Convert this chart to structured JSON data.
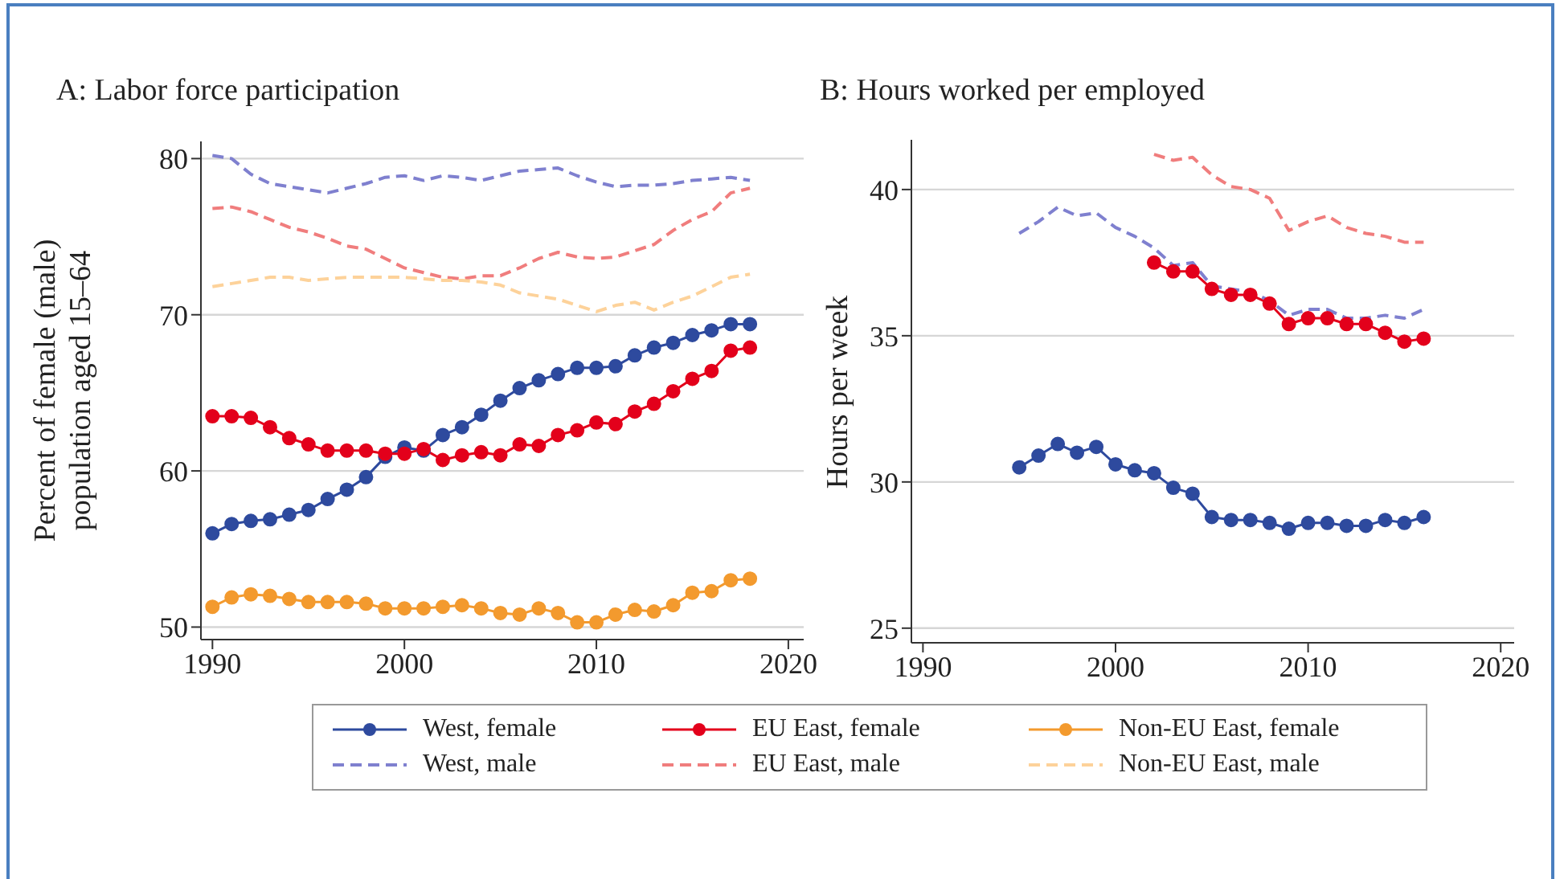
{
  "chart_data": [
    {
      "type": "line",
      "title": "A: Labor force participation",
      "ylabel": "Percent of female (male) population aged 15–64",
      "xlim": [
        1989.4,
        2020.8
      ],
      "xticks": [
        1990,
        2000,
        2010,
        2020
      ],
      "ylim": [
        49.2,
        81.1
      ],
      "yticks": [
        50,
        60,
        70,
        80
      ],
      "grid": "y",
      "legend": "bottom",
      "series": [
        {
          "name": "West, female",
          "color": "#2e4a9e",
          "marker": "circle",
          "line_style": "solid",
          "x": [
            1990,
            1991,
            1992,
            1993,
            1994,
            1995,
            1996,
            1997,
            1998,
            1999,
            2000,
            2001,
            2002,
            2003,
            2004,
            2005,
            2006,
            2007,
            2008,
            2009,
            2010,
            2011,
            2012,
            2013,
            2014,
            2015,
            2016,
            2017,
            2018
          ],
          "values": [
            56.0,
            56.6,
            56.8,
            56.9,
            57.2,
            57.5,
            58.2,
            58.8,
            59.6,
            60.9,
            61.5,
            61.3,
            62.3,
            62.8,
            63.6,
            64.5,
            65.3,
            65.8,
            66.2,
            66.6,
            66.6,
            66.7,
            67.4,
            67.9,
            68.2,
            68.7,
            69.0,
            69.4,
            69.4
          ]
        },
        {
          "name": "EU East, female",
          "color": "#e3001b",
          "marker": "circle",
          "line_style": "solid",
          "x": [
            1990,
            1991,
            1992,
            1993,
            1994,
            1995,
            1996,
            1997,
            1998,
            1999,
            2000,
            2001,
            2002,
            2003,
            2004,
            2005,
            2006,
            2007,
            2008,
            2009,
            2010,
            2011,
            2012,
            2013,
            2014,
            2015,
            2016,
            2017,
            2018
          ],
          "values": [
            63.5,
            63.5,
            63.4,
            62.8,
            62.1,
            61.7,
            61.3,
            61.3,
            61.3,
            61.1,
            61.1,
            61.4,
            60.7,
            61.0,
            61.2,
            61.0,
            61.7,
            61.6,
            62.3,
            62.6,
            63.1,
            63.0,
            63.8,
            64.3,
            65.1,
            65.9,
            66.4,
            67.7,
            67.9
          ]
        },
        {
          "name": "Non-EU East, female",
          "color": "#f39a2e",
          "marker": "circle",
          "line_style": "solid",
          "x": [
            1990,
            1991,
            1992,
            1993,
            1994,
            1995,
            1996,
            1997,
            1998,
            1999,
            2000,
            2001,
            2002,
            2003,
            2004,
            2005,
            2006,
            2007,
            2008,
            2009,
            2010,
            2011,
            2012,
            2013,
            2014,
            2015,
            2016,
            2017,
            2018
          ],
          "values": [
            51.3,
            51.9,
            52.1,
            52.0,
            51.8,
            51.6,
            51.6,
            51.6,
            51.5,
            51.2,
            51.2,
            51.2,
            51.3,
            51.4,
            51.2,
            50.9,
            50.8,
            51.2,
            50.9,
            50.3,
            50.3,
            50.8,
            51.1,
            51.0,
            51.4,
            52.2,
            52.3,
            53.0,
            53.1
          ]
        },
        {
          "name": "West, male",
          "color": "#7f80cf",
          "marker": "none",
          "line_style": "dashed",
          "x": [
            1990,
            1991,
            1992,
            1993,
            1994,
            1995,
            1996,
            1997,
            1998,
            1999,
            2000,
            2001,
            2002,
            2003,
            2004,
            2005,
            2006,
            2007,
            2008,
            2009,
            2010,
            2011,
            2012,
            2013,
            2014,
            2015,
            2016,
            2017,
            2018
          ],
          "values": [
            80.2,
            80.0,
            79.0,
            78.4,
            78.2,
            78.0,
            77.8,
            78.1,
            78.4,
            78.8,
            78.9,
            78.6,
            78.9,
            78.8,
            78.6,
            78.9,
            79.2,
            79.3,
            79.4,
            78.9,
            78.5,
            78.2,
            78.3,
            78.3,
            78.4,
            78.6,
            78.7,
            78.8,
            78.6
          ]
        },
        {
          "name": "EU East, male",
          "color": "#f07d7d",
          "marker": "none",
          "line_style": "dashed",
          "x": [
            1990,
            1991,
            1992,
            1993,
            1994,
            1995,
            1996,
            1997,
            1998,
            1999,
            2000,
            2001,
            2002,
            2003,
            2004,
            2005,
            2006,
            2007,
            2008,
            2009,
            2010,
            2011,
            2012,
            2013,
            2014,
            2015,
            2016,
            2017,
            2018
          ],
          "values": [
            76.8,
            76.9,
            76.6,
            76.1,
            75.6,
            75.3,
            74.9,
            74.4,
            74.2,
            73.6,
            73.0,
            72.7,
            72.4,
            72.3,
            72.5,
            72.5,
            73.0,
            73.6,
            74.0,
            73.7,
            73.6,
            73.7,
            74.1,
            74.5,
            75.4,
            76.1,
            76.6,
            77.8,
            78.1
          ]
        },
        {
          "name": "Non-EU East, male",
          "color": "#fdd29a",
          "marker": "none",
          "line_style": "dashed",
          "x": [
            1990,
            1991,
            1992,
            1993,
            1994,
            1995,
            1996,
            1997,
            1998,
            1999,
            2000,
            2001,
            2002,
            2003,
            2004,
            2005,
            2006,
            2007,
            2008,
            2009,
            2010,
            2011,
            2012,
            2013,
            2014,
            2015,
            2016,
            2017,
            2018
          ],
          "values": [
            71.8,
            72.0,
            72.2,
            72.4,
            72.4,
            72.2,
            72.3,
            72.4,
            72.4,
            72.4,
            72.4,
            72.3,
            72.2,
            72.2,
            72.1,
            71.9,
            71.4,
            71.2,
            71.0,
            70.6,
            70.2,
            70.6,
            70.8,
            70.3,
            70.8,
            71.2,
            71.8,
            72.4,
            72.6
          ]
        }
      ]
    },
    {
      "type": "line",
      "title": "B: Hours worked per employed",
      "ylabel": "Hours per week",
      "xlim": [
        1989.4,
        2020.7
      ],
      "xticks": [
        1990,
        2000,
        2010,
        2020
      ],
      "ylim": [
        24.5,
        41.7
      ],
      "yticks": [
        25,
        30,
        35,
        40
      ],
      "grid": "y",
      "legend": "bottom",
      "series": [
        {
          "name": "West, female",
          "color": "#2e4a9e",
          "marker": "circle",
          "line_style": "solid",
          "x": [
            1995,
            1996,
            1997,
            1998,
            1999,
            2000,
            2001,
            2002,
            2003,
            2004,
            2005,
            2006,
            2007,
            2008,
            2009,
            2010,
            2011,
            2012,
            2013,
            2014,
            2015,
            2016
          ],
          "values": [
            30.5,
            30.9,
            31.3,
            31.0,
            31.2,
            30.6,
            30.4,
            30.3,
            29.8,
            29.6,
            28.8,
            28.7,
            28.7,
            28.6,
            28.4,
            28.6,
            28.6,
            28.5,
            28.5,
            28.7,
            28.6,
            28.8
          ]
        },
        {
          "name": "EU East, female",
          "color": "#e3001b",
          "marker": "circle",
          "line_style": "solid",
          "x": [
            2002,
            2003,
            2004,
            2005,
            2006,
            2007,
            2008,
            2009,
            2010,
            2011,
            2012,
            2013,
            2014,
            2015,
            2016
          ],
          "values": [
            37.5,
            37.2,
            37.2,
            36.6,
            36.4,
            36.4,
            36.1,
            35.4,
            35.6,
            35.6,
            35.4,
            35.4,
            35.1,
            34.8,
            34.9
          ]
        },
        {
          "name": "West, male",
          "color": "#7f80cf",
          "marker": "none",
          "line_style": "dashed",
          "x": [
            1995,
            1996,
            1997,
            1998,
            1999,
            2000,
            2001,
            2002,
            2003,
            2004,
            2005,
            2006,
            2007,
            2008,
            2009,
            2010,
            2011,
            2012,
            2013,
            2014,
            2015,
            2016
          ],
          "values": [
            38.5,
            38.9,
            39.4,
            39.1,
            39.2,
            38.7,
            38.4,
            38.0,
            37.4,
            37.5,
            36.7,
            36.6,
            36.5,
            36.2,
            35.7,
            35.9,
            35.9,
            35.6,
            35.6,
            35.7,
            35.6,
            35.9
          ]
        },
        {
          "name": "EU East, male",
          "color": "#f07d7d",
          "marker": "none",
          "line_style": "dashed",
          "x": [
            2002,
            2003,
            2004,
            2005,
            2006,
            2007,
            2008,
            2009,
            2010,
            2011,
            2012,
            2013,
            2014,
            2015,
            2016
          ],
          "values": [
            41.2,
            41.0,
            41.1,
            40.5,
            40.1,
            40.0,
            39.7,
            38.6,
            38.9,
            39.1,
            38.7,
            38.5,
            38.4,
            38.2,
            38.2
          ]
        }
      ]
    }
  ]
}
